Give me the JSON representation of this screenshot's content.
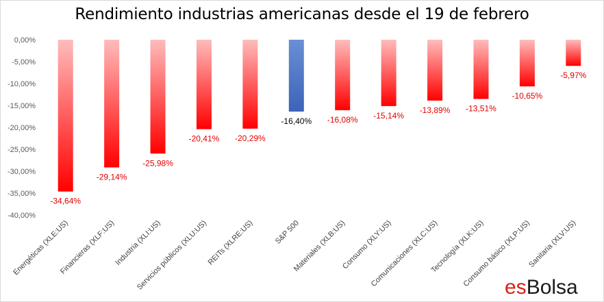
{
  "chart_data": {
    "type": "bar",
    "title": "Rendimiento industrias americanas desde el 19 de febrero",
    "categories": [
      "Energéticas (XLE:US)",
      "Financieras (XLF:US)",
      "Industria (XLI:US)",
      "Servicios públicos (XLU:US)",
      "REITs (XLRE:US)",
      "S&P 500",
      "Materiales (XLB:US)",
      "Consumo (XLY:US)",
      "Comunicaciones (XLC:US)",
      "Tecnología (XLK:US)",
      "Consumo básico (XLP:US)",
      "Sanitaria (XLV:US)"
    ],
    "values": [
      -34.64,
      -29.14,
      -25.98,
      -20.41,
      -20.29,
      -16.4,
      -16.08,
      -15.14,
      -13.89,
      -13.51,
      -10.65,
      -5.97
    ],
    "data_labels": [
      "-34,64%",
      "-29,14%",
      "-25,98%",
      "-20,41%",
      "-20,29%",
      "-16,40%",
      "-16,08%",
      "-15,14%",
      "-13,89%",
      "-13,51%",
      "-10,65%",
      "-5,97%"
    ],
    "y_ticks": [
      "0,00%",
      "-5,00%",
      "-10,00%",
      "-15,00%",
      "-20,00%",
      "-25,00%",
      "-30,00%",
      "-35,00%",
      "-40,00%"
    ],
    "ylim": [
      -40,
      0
    ],
    "xlabel": "",
    "ylabel": "",
    "grid": false,
    "legend": "none",
    "highlight_category": "S&P 500",
    "colors": {
      "sector_bar_light": "#ffbcbc",
      "sector_bar_dark": "#ff0000",
      "benchmark_bar_light": "#6a8fd4",
      "benchmark_bar_dark": "#3c63b9",
      "sector_label": "#e00000",
      "benchmark_label": "#000000"
    }
  },
  "watermark": {
    "prefix": "es",
    "suffix": "Bolsa"
  }
}
